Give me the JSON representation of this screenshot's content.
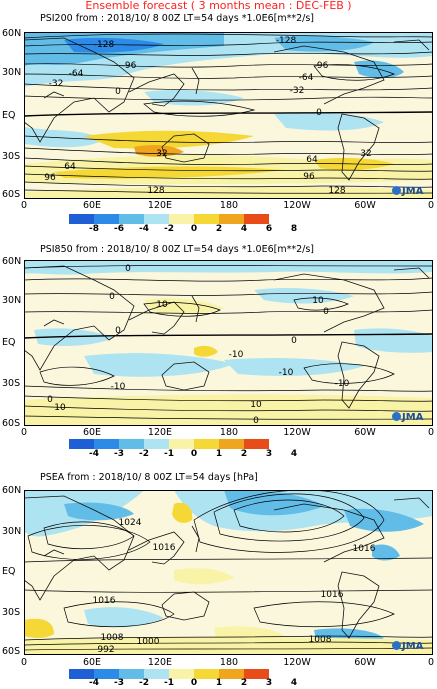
{
  "header": {
    "title": "Ensemble forecast ( 3 months mean : DEC-FEB )"
  },
  "colors": {
    "neg4": "#1f5fd6",
    "neg3": "#2d8be8",
    "neg2": "#61bde8",
    "neg1": "#aee3f2",
    "zero_band": "#fbf7dd",
    "pos1": "#f8f3a6",
    "pos2": "#f5d835",
    "pos3": "#f0a51e",
    "pos4": "#e84c18",
    "contour": "#000000",
    "coast": "#111111"
  },
  "logo": {
    "text": "JMA"
  },
  "panels": [
    {
      "title": "PSI200  from : 2018/10/ 8 00Z LT=54 days    *1.0E6[m**2/s]",
      "lat_labels": [
        "60N",
        "30N",
        "EQ",
        "30S",
        "60S"
      ],
      "lon_labels": [
        "0",
        "60E",
        "120E",
        "180",
        "120W",
        "60W",
        "0"
      ],
      "colorbar": [
        "-8",
        "-6",
        "-4",
        "-2",
        "0",
        "2",
        "4",
        "6",
        "8"
      ],
      "contour_labels": [
        "-128",
        "-128",
        "-96",
        "-96",
        "-64",
        "-64",
        "-32",
        "-32",
        "0",
        "0",
        "32",
        "32",
        "64",
        "64",
        "96",
        "96",
        "128",
        "128"
      ]
    },
    {
      "title": "PSI850  from : 2018/10/ 8 00Z LT=54 days    *1.0E6[m**2/s]",
      "lat_labels": [
        "60N",
        "30N",
        "EQ",
        "30S",
        "60S"
      ],
      "lon_labels": [
        "0",
        "60E",
        "120E",
        "180",
        "120W",
        "60W",
        "0"
      ],
      "colorbar": [
        "-4",
        "-3",
        "-2",
        "-1",
        "0",
        "1",
        "2",
        "3",
        "4"
      ],
      "contour_labels": [
        "0",
        "0",
        "0",
        "0",
        "0",
        "10",
        "10",
        "-10",
        "-10",
        "-10",
        "-10",
        "0",
        "10",
        "10",
        "0"
      ]
    },
    {
      "title": "PSEA  from : 2018/10/ 8 00Z LT=54 days  [hPa]",
      "lat_labels": [
        "60N",
        "30N",
        "EQ",
        "30S",
        "60S"
      ],
      "lon_labels": [
        "0",
        "60E",
        "120E",
        "180",
        "120W",
        "60W",
        "0"
      ],
      "colorbar": [
        "-4",
        "-3",
        "-2",
        "-1",
        "0",
        "1",
        "2",
        "3",
        "4"
      ],
      "contour_labels": [
        "1024",
        "1016",
        "1016",
        "1016",
        "1016",
        "1008",
        "1000",
        "992",
        "1008"
      ]
    }
  ]
}
